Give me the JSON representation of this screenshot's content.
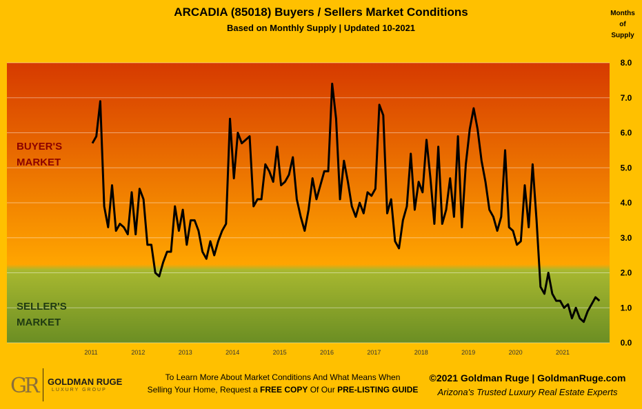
{
  "header": {
    "title": "ARCADIA (85018) Buyers / Sellers Market Conditions",
    "subtitle": "Based on Monthly Supply | Updated 10-2021",
    "ylabel_lines": [
      "Months",
      "of",
      "Supply"
    ]
  },
  "zones": {
    "buyer_lines": [
      "BUYER'S",
      "MARKET"
    ],
    "seller_lines": [
      "SELLER'S",
      "MARKET"
    ]
  },
  "colors": {
    "background": "#FFC000",
    "buyer_top": "#D63A00",
    "mid": "#FFA500",
    "seller_top": "#A8B830",
    "seller_bottom": "#6B8E23",
    "line": "#000000",
    "buyer_text": "#8B0000",
    "seller_text": "#1F3A12"
  },
  "footer": {
    "logo_mark": "GR",
    "logo_name": "GOLDMAN RUGE",
    "logo_tagline": "LUXURY GROUP",
    "cta_line1": "To Learn More About Market Conditions And What Means When",
    "cta_line2_pre": "Selling Your Home, Request a ",
    "cta_bold1": "FREE COPY",
    "cta_mid": " Of Our ",
    "cta_bold2": "PRE-LISTING GUIDE",
    "copyright": "©2021 Goldman Ruge  |  GoldmanRuge.com",
    "slogan": "Arizona's Trusted Luxury Real Estate Experts"
  },
  "chart_data": {
    "type": "line",
    "title": "ARCADIA (85018) Buyers / Sellers Market Conditions",
    "subtitle": "Based on Monthly Supply | Updated 10-2021",
    "ylabel": "Months of Supply",
    "xlabel": "",
    "ylim": [
      0,
      8
    ],
    "yticks": [
      "0.0",
      "1.0",
      "2.0",
      "3.0",
      "4.0",
      "5.0",
      "6.0",
      "7.0",
      "8.0"
    ],
    "year_labels": [
      "2011",
      "2012",
      "2013",
      "2014",
      "2015",
      "2016",
      "2017",
      "2018",
      "2019",
      "2020",
      "2021"
    ],
    "start_year": 2011,
    "grid": true,
    "series": [
      {
        "values": [
          5.7,
          5.9,
          6.9,
          3.9,
          3.3,
          4.5,
          3.2,
          3.4,
          3.3,
          3.1,
          4.3,
          3.1,
          4.4,
          4.1,
          2.8,
          2.8,
          2.0,
          1.9,
          2.3,
          2.6,
          2.6,
          3.9,
          3.2,
          3.8,
          2.8,
          3.5,
          3.5,
          3.2,
          2.6,
          2.4,
          2.9,
          2.5,
          2.9,
          3.2,
          3.4,
          6.4,
          4.7,
          6.0,
          5.7,
          5.8,
          5.9,
          3.9,
          4.1,
          4.1,
          5.1,
          4.9,
          4.6,
          5.6,
          4.5,
          4.6,
          4.8,
          5.3,
          4.1,
          3.6,
          3.2,
          3.8,
          4.7,
          4.1,
          4.5,
          4.9,
          4.9,
          7.4,
          6.4,
          4.1,
          5.2,
          4.6,
          3.9,
          3.6,
          4.0,
          3.7,
          4.3,
          4.2,
          4.4,
          6.8,
          6.5,
          3.7,
          4.1,
          2.9,
          2.7,
          3.5,
          3.9,
          5.4,
          3.8,
          4.6,
          4.3,
          5.8,
          4.7,
          3.4,
          5.6,
          3.4,
          3.8,
          4.7,
          3.6,
          5.9,
          3.3,
          5.1,
          6.1,
          6.7,
          6.1,
          5.2,
          4.6,
          3.8,
          3.6,
          3.2,
          3.6,
          5.5,
          3.3,
          3.2,
          2.8,
          2.9,
          4.5,
          3.3,
          5.1,
          3.5,
          1.6,
          1.4,
          2.0,
          1.4,
          1.2,
          1.2,
          1.0,
          1.1,
          0.7,
          1.0,
          0.7,
          0.6,
          0.9,
          1.1,
          1.3,
          1.2
        ]
      }
    ]
  }
}
